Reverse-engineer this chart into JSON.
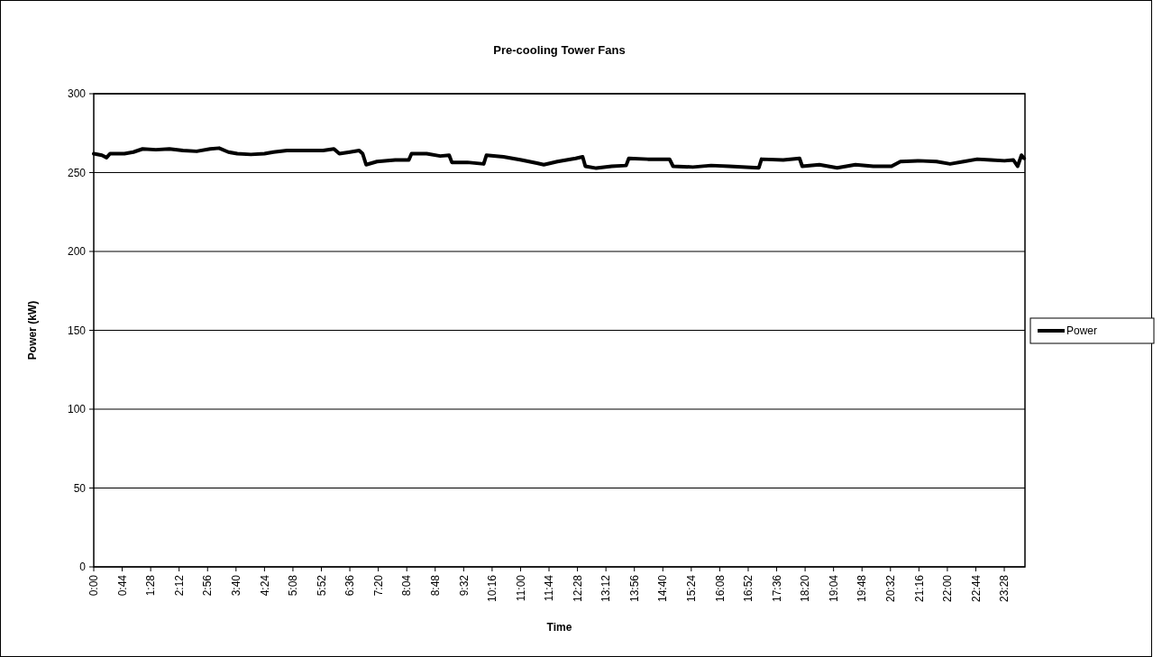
{
  "chart_data": {
    "type": "line",
    "title": "Pre-cooling Tower Fans",
    "xlabel": "Time",
    "ylabel": "Power (kW)",
    "x": [
      0,
      0.21,
      0.33,
      0.42,
      0.79,
      1.02,
      1.26,
      1.6,
      1.95,
      2.3,
      2.65,
      3.0,
      3.23,
      3.47,
      3.7,
      4.05,
      4.4,
      4.63,
      4.98,
      5.44,
      5.91,
      6.19,
      6.33,
      6.6,
      6.84,
      6.93,
      7.02,
      7.3,
      7.77,
      8.12,
      8.19,
      8.58,
      8.93,
      9.16,
      9.23,
      9.63,
      10.05,
      10.12,
      10.56,
      11.02,
      11.42,
      11.6,
      11.95,
      12.42,
      12.6,
      12.67,
      12.95,
      13.35,
      13.72,
      13.79,
      14.28,
      14.84,
      14.93,
      15.44,
      15.91,
      16.37,
      17.14,
      17.21,
      17.77,
      18.19,
      18.26,
      18.7,
      19.16,
      19.63,
      20.09,
      20.56,
      20.79,
      21.26,
      21.72,
      22.07,
      22.42,
      22.77,
      23.12,
      23.47,
      23.7,
      23.81,
      23.91,
      23.98
    ],
    "series": [
      {
        "name": "Power",
        "color": "#000000",
        "values": [
          262,
          261,
          259.5,
          262,
          262,
          263,
          265,
          264.5,
          265,
          264,
          263.5,
          265,
          265.5,
          263,
          262,
          261.5,
          262,
          263,
          264,
          264,
          264,
          265,
          262,
          263,
          264,
          262,
          255,
          257,
          258,
          258,
          262,
          262,
          260.5,
          261,
          256.5,
          256.5,
          255.5,
          261,
          260,
          258,
          256,
          255,
          257,
          259,
          260,
          254,
          252.8,
          254,
          254.5,
          259,
          258.5,
          258.5,
          254,
          253.5,
          254.5,
          254,
          253,
          258.5,
          258,
          259,
          254,
          255,
          253,
          255,
          254,
          254,
          257,
          257.5,
          257,
          255.5,
          257,
          258.5,
          258,
          257.5,
          258,
          254,
          261,
          259
        ]
      }
    ],
    "xlim": [
      0,
      24
    ],
    "xticks": [
      {
        "value": 0,
        "label": "0:00"
      },
      {
        "value": 0.7333,
        "label": "0:44"
      },
      {
        "value": 1.4667,
        "label": "1:28"
      },
      {
        "value": 2.2,
        "label": "2:12"
      },
      {
        "value": 2.9333,
        "label": "2:56"
      },
      {
        "value": 3.6667,
        "label": "3:40"
      },
      {
        "value": 4.4,
        "label": "4:24"
      },
      {
        "value": 5.1333,
        "label": "5:08"
      },
      {
        "value": 5.8667,
        "label": "5:52"
      },
      {
        "value": 6.6,
        "label": "6:36"
      },
      {
        "value": 7.3333,
        "label": "7:20"
      },
      {
        "value": 8.0667,
        "label": "8:04"
      },
      {
        "value": 8.8,
        "label": "8:48"
      },
      {
        "value": 9.5333,
        "label": "9:32"
      },
      {
        "value": 10.2667,
        "label": "10:16"
      },
      {
        "value": 11,
        "label": "11:00"
      },
      {
        "value": 11.7333,
        "label": "11:44"
      },
      {
        "value": 12.4667,
        "label": "12:28"
      },
      {
        "value": 13.2,
        "label": "13:12"
      },
      {
        "value": 13.9333,
        "label": "13:56"
      },
      {
        "value": 14.6667,
        "label": "14:40"
      },
      {
        "value": 15.4,
        "label": "15:24"
      },
      {
        "value": 16.1333,
        "label": "16:08"
      },
      {
        "value": 16.8667,
        "label": "16:52"
      },
      {
        "value": 17.6,
        "label": "17:36"
      },
      {
        "value": 18.3333,
        "label": "18:20"
      },
      {
        "value": 19.0667,
        "label": "19:04"
      },
      {
        "value": 19.8,
        "label": "19:48"
      },
      {
        "value": 20.5333,
        "label": "20:32"
      },
      {
        "value": 21.2667,
        "label": "21:16"
      },
      {
        "value": 22,
        "label": "22:00"
      },
      {
        "value": 22.7333,
        "label": "22:44"
      },
      {
        "value": 23.4667,
        "label": "23:28"
      }
    ],
    "ylim": [
      0,
      300
    ],
    "yticks": [
      0,
      50,
      100,
      150,
      200,
      250,
      300
    ],
    "grid": "y",
    "legend": "right",
    "marker": "none",
    "line_style": "solid"
  }
}
